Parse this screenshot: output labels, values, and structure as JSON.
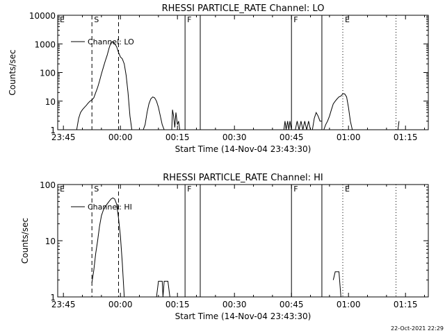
{
  "stamp": "22-Oct-2021 22:29",
  "chart_data": [
    {
      "type": "line",
      "title": "RHESSI PARTICLE_RATE Channel: LO",
      "xlabel": "Start Time (14-Nov-04 23:43:30)",
      "ylabel": "Counts/sec",
      "yscale": "log",
      "ylim": [
        1,
        10000
      ],
      "xlim": [
        -1.5,
        96
      ],
      "x_unit": "minutes after 23:45",
      "xticks": [
        {
          "x": 0,
          "label": "23:45"
        },
        {
          "x": 15,
          "label": "00:00"
        },
        {
          "x": 30,
          "label": "00:15"
        },
        {
          "x": 45,
          "label": "00:30"
        },
        {
          "x": 60,
          "label": "00:45"
        },
        {
          "x": 75,
          "label": "01:00"
        },
        {
          "x": 90,
          "label": "01:15"
        }
      ],
      "yticks": [
        {
          "y": 1,
          "label": "1"
        },
        {
          "y": 10,
          "label": "10"
        },
        {
          "y": 100,
          "label": "100"
        },
        {
          "y": 1000,
          "label": "1000"
        },
        {
          "y": 10000,
          "label": "10000"
        }
      ],
      "legend": {
        "label": "Channel: LO",
        "placement": "top-left"
      },
      "markers": [
        {
          "x": -1.5,
          "style": "none",
          "label": "E"
        },
        {
          "x": 7.5,
          "style": "dashed",
          "label": "S"
        },
        {
          "x": 14.5,
          "style": "dashed",
          "label": ""
        },
        {
          "x": 32,
          "style": "solid",
          "label": "F"
        },
        {
          "x": 36,
          "style": "solid",
          "label": ""
        },
        {
          "x": 60,
          "style": "solid",
          "label": "F"
        },
        {
          "x": 68,
          "style": "solid",
          "label": ""
        },
        {
          "x": 73.5,
          "style": "dotted",
          "label": "E"
        },
        {
          "x": 87.5,
          "style": "dotted",
          "label": ""
        }
      ],
      "series": [
        {
          "segments": [
            [
              [
                3.5,
                1
              ],
              [
                4,
                2.5
              ],
              [
                4.5,
                4
              ],
              [
                5,
                5
              ],
              [
                5.5,
                6
              ],
              [
                6,
                7
              ],
              [
                6.5,
                8.5
              ],
              [
                7,
                10
              ],
              [
                7.5,
                11
              ],
              [
                8,
                13
              ],
              [
                8.5,
                20
              ],
              [
                9,
                30
              ],
              [
                9.5,
                50
              ],
              [
                10,
                90
              ],
              [
                10.5,
                150
              ],
              [
                11,
                250
              ],
              [
                11.5,
                400
              ],
              [
                12,
                700
              ],
              [
                12.5,
                1100
              ],
              [
                13,
                1200
              ],
              [
                13.5,
                1000
              ],
              [
                14,
                800
              ],
              [
                14.5,
                500
              ],
              [
                15,
                350
              ],
              [
                15.5,
                300
              ],
              [
                16,
                200
              ],
              [
                16.5,
                80
              ],
              [
                17,
                20
              ],
              [
                17.5,
                3
              ],
              [
                18,
                1
              ]
            ],
            [
              [
                21,
                1
              ],
              [
                21.5,
                1.5
              ],
              [
                22,
                4
              ],
              [
                22.5,
                8
              ],
              [
                23,
                12
              ],
              [
                23.5,
                14
              ],
              [
                24,
                13
              ],
              [
                24.5,
                10
              ],
              [
                25,
                6
              ],
              [
                25.5,
                3
              ],
              [
                26,
                1.5
              ],
              [
                26.5,
                1
              ]
            ],
            [
              [
                28.5,
                1
              ],
              [
                28.7,
                5
              ],
              [
                29,
                3
              ],
              [
                29.3,
                1.2
              ],
              [
                29.6,
                4
              ],
              [
                30,
                1.5
              ],
              [
                30.3,
                2
              ],
              [
                30.6,
                1
              ]
            ],
            [
              [
                58,
                1
              ],
              [
                58.3,
                2
              ],
              [
                58.6,
                1
              ],
              [
                59,
                2
              ],
              [
                59.3,
                1
              ],
              [
                59.6,
                2
              ],
              [
                60,
                1
              ]
            ],
            [
              [
                61,
                1
              ],
              [
                61.5,
                2
              ],
              [
                62,
                1
              ],
              [
                62.5,
                2
              ],
              [
                63,
                1
              ],
              [
                63.5,
                2
              ],
              [
                64,
                1
              ],
              [
                64.5,
                2
              ],
              [
                65,
                1
              ]
            ],
            [
              [
                65.5,
                1
              ],
              [
                66,
                2.5
              ],
              [
                66.5,
                4
              ],
              [
                67,
                3
              ],
              [
                67.5,
                2
              ],
              [
                68,
                2
              ]
            ],
            [
              [
                68.5,
                1
              ],
              [
                69,
                1.5
              ],
              [
                69.5,
                2
              ],
              [
                70,
                3
              ],
              [
                70.5,
                5
              ],
              [
                71,
                8
              ],
              [
                71.5,
                10
              ],
              [
                72,
                12
              ],
              [
                72.5,
                14
              ],
              [
                73,
                15
              ],
              [
                73.5,
                18
              ],
              [
                74,
                18
              ],
              [
                74.5,
                14
              ],
              [
                75,
                6
              ],
              [
                75.5,
                2
              ],
              [
                76,
                1
              ]
            ],
            [
              [
                88,
                1
              ],
              [
                88.3,
                2
              ]
            ]
          ]
        }
      ]
    },
    {
      "type": "line",
      "title": "RHESSI PARTICLE_RATE Channel: HI",
      "xlabel": "Start Time (14-Nov-04 23:43:30)",
      "ylabel": "Counts/sec",
      "yscale": "log",
      "ylim": [
        1,
        100
      ],
      "xlim": [
        -1.5,
        96
      ],
      "x_unit": "minutes after 23:45",
      "xticks": [
        {
          "x": 0,
          "label": "23:45"
        },
        {
          "x": 15,
          "label": "00:00"
        },
        {
          "x": 30,
          "label": "00:15"
        },
        {
          "x": 45,
          "label": "00:30"
        },
        {
          "x": 60,
          "label": "00:45"
        },
        {
          "x": 75,
          "label": "01:00"
        },
        {
          "x": 90,
          "label": "01:15"
        }
      ],
      "yticks": [
        {
          "y": 1,
          "label": "1"
        },
        {
          "y": 10,
          "label": "10"
        },
        {
          "y": 100,
          "label": "100"
        }
      ],
      "legend": {
        "label": "Channel: HI",
        "placement": "top-left"
      },
      "markers": [
        {
          "x": -1.5,
          "style": "none",
          "label": "E"
        },
        {
          "x": 7.5,
          "style": "dashed",
          "label": "S"
        },
        {
          "x": 14.5,
          "style": "dashed",
          "label": ""
        },
        {
          "x": 32,
          "style": "solid",
          "label": "F"
        },
        {
          "x": 36,
          "style": "solid",
          "label": ""
        },
        {
          "x": 60,
          "style": "solid",
          "label": "F"
        },
        {
          "x": 68,
          "style": "solid",
          "label": ""
        },
        {
          "x": 73.5,
          "style": "dotted",
          "label": "E"
        },
        {
          "x": 87.5,
          "style": "dotted",
          "label": ""
        }
      ],
      "series": [
        {
          "segments": [
            [
              [
                7.5,
                1.8
              ],
              [
                8,
                3
              ],
              [
                8.5,
                6
              ],
              [
                9,
                10
              ],
              [
                9.5,
                18
              ],
              [
                10,
                28
              ],
              [
                10.5,
                35
              ],
              [
                11,
                40
              ],
              [
                11.5,
                45
              ],
              [
                12,
                50
              ],
              [
                12.5,
                55
              ],
              [
                13,
                58
              ],
              [
                13.5,
                55
              ],
              [
                14,
                45
              ],
              [
                14.5,
                25
              ],
              [
                15,
                12
              ],
              [
                15.5,
                4
              ],
              [
                16,
                1
              ]
            ],
            [
              [
                24.5,
                1
              ],
              [
                25,
                1.9
              ],
              [
                26,
                1.9
              ],
              [
                26.2,
                1
              ],
              [
                26.5,
                1.9
              ],
              [
                27.5,
                1.9
              ],
              [
                28,
                1
              ]
            ],
            [
              [
                71,
                2
              ],
              [
                71.5,
                2.8
              ],
              [
                72.5,
                2.8
              ],
              [
                73,
                1
              ]
            ]
          ]
        }
      ]
    }
  ]
}
